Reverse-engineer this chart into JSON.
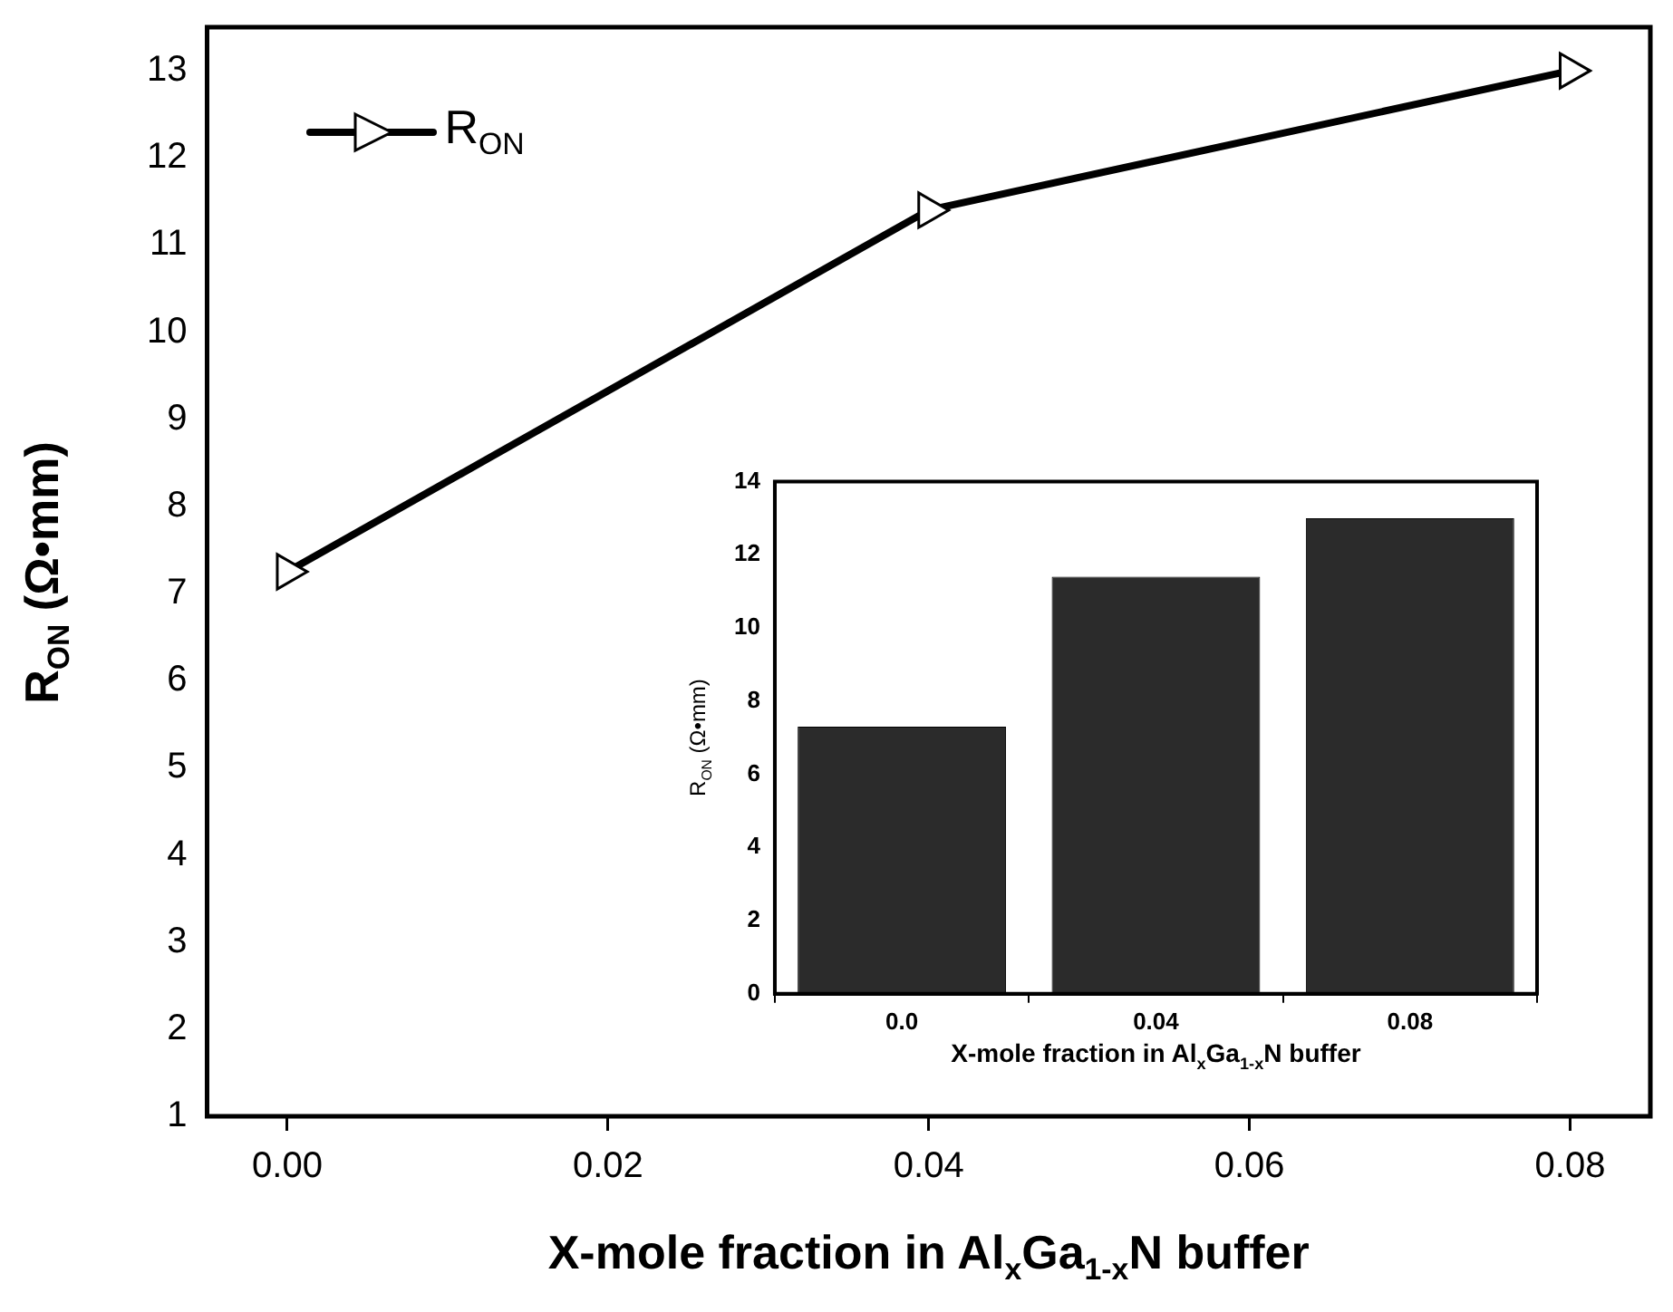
{
  "chart_data": [
    {
      "type": "line",
      "xlabel": "X-mole fraction in Al$_{x}$Ga$_{1-x}$N buffer",
      "ylabel": "R$_{ON}$ (Ω•mm)",
      "x": [
        0.0,
        0.04,
        0.08
      ],
      "series": [
        {
          "name": "R$_{ON}$",
          "color": "#000000",
          "values": [
            7.25,
            11.4,
            13.0
          ]
        }
      ],
      "xlim": [
        -0.005,
        0.085
      ],
      "xticks": [
        {
          "value": 0,
          "label": "0.00"
        },
        0.02,
        0.04,
        0.06,
        0.08
      ],
      "ylim": [
        1,
        13.5
      ],
      "yticks": [
        1,
        2,
        3,
        4,
        5,
        6,
        7,
        8,
        9,
        10,
        11,
        12,
        13
      ],
      "marker": "triangle",
      "legend": "top left"
    },
    {
      "type": "bar",
      "xlabel": "X-mole fraction in Al$_{x}$Ga$_{1-x}$N buffer",
      "ylabel": "R$_{ON}$ (Ω•mm)",
      "categories": [
        "0.0",
        "0.04",
        "0.08"
      ],
      "values": [
        7.3,
        11.4,
        13.0
      ],
      "color": "#2b2b2b",
      "ylim": [
        0,
        14
      ],
      "yticks": [
        0,
        2,
        4,
        6,
        8,
        10,
        12,
        14
      ]
    }
  ]
}
